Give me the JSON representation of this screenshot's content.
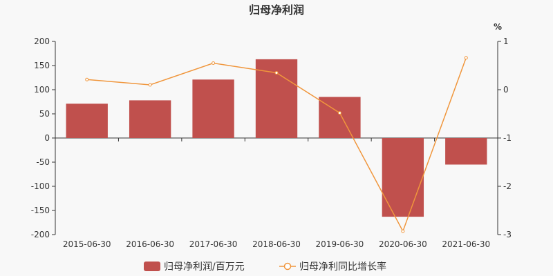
{
  "chart_data": {
    "type": "bar",
    "title": "归母净利润",
    "categories": [
      "2015-06-30",
      "2016-06-30",
      "2017-06-30",
      "2018-06-30",
      "2019-06-30",
      "2020-06-30",
      "2021-06-30"
    ],
    "series": [
      {
        "name": "归母净利润/百万元",
        "type": "bar",
        "axis": "left",
        "color": "#c0504d",
        "values": [
          71,
          78,
          121,
          163,
          85,
          -163,
          -55
        ]
      },
      {
        "name": "归母净利同比增长率",
        "type": "line",
        "axis": "right",
        "color": "#f0963c",
        "values": [
          0.21,
          0.1,
          0.55,
          0.35,
          -0.48,
          -2.93,
          0.66
        ]
      }
    ],
    "y_left": {
      "min": -200,
      "max": 200,
      "ticks": [
        200,
        150,
        100,
        50,
        0,
        -50,
        -100,
        -150,
        -200
      ]
    },
    "y_right": {
      "min": -3,
      "max": 1,
      "ticks": [
        1,
        0,
        -1,
        -2,
        -3
      ],
      "unit_label": "%"
    },
    "grid": false,
    "legend_position": "bottom"
  }
}
